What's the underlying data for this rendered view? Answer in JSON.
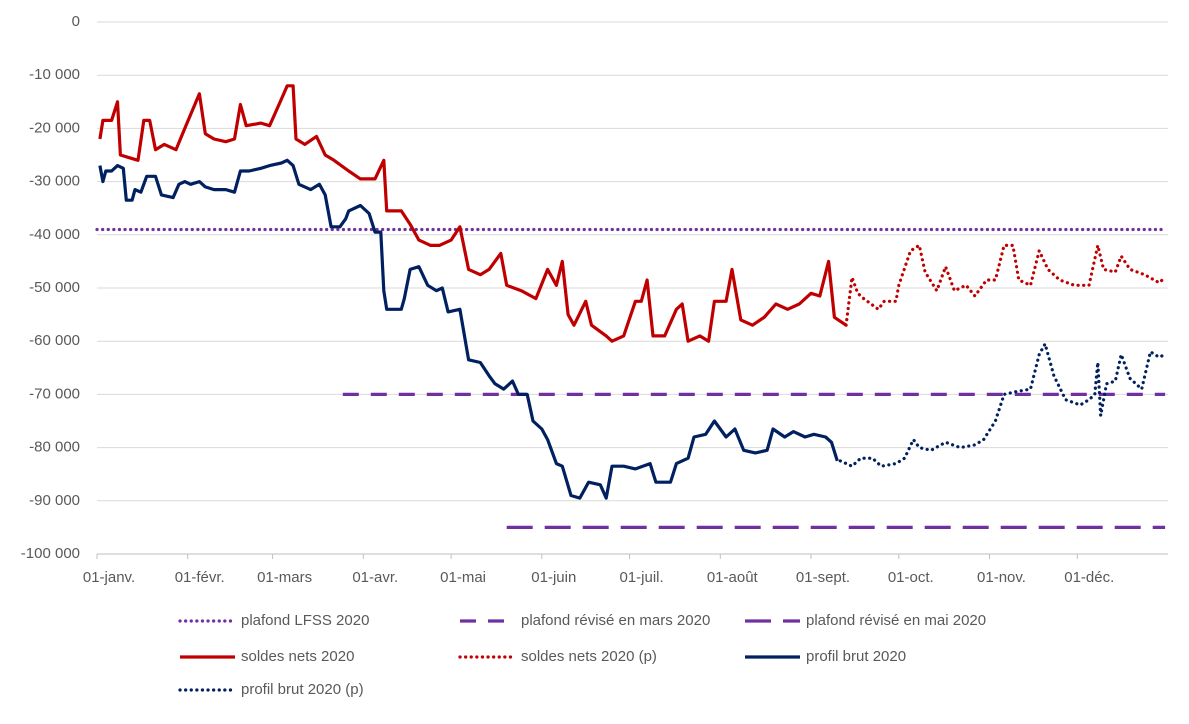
{
  "chart_data": {
    "type": "line",
    "xlim": [
      0,
      366
    ],
    "ylim": [
      -100000,
      0
    ],
    "xticks": [
      {
        "value": 0,
        "label": "01-janv."
      },
      {
        "value": 31,
        "label": "01-févr."
      },
      {
        "value": 60,
        "label": "01-mars"
      },
      {
        "value": 91,
        "label": "01-avr."
      },
      {
        "value": 121,
        "label": "01-mai"
      },
      {
        "value": 152,
        "label": "01-juin"
      },
      {
        "value": 182,
        "label": "01-juil."
      },
      {
        "value": 213,
        "label": "01-août"
      },
      {
        "value": 244,
        "label": "01-sept."
      },
      {
        "value": 274,
        "label": "01-oct."
      },
      {
        "value": 305,
        "label": "01-nov."
      },
      {
        "value": 335,
        "label": "01-déc."
      }
    ],
    "yticks": [
      0,
      {
        "value": -10000,
        "label": "-10 000"
      },
      {
        "value": -20000,
        "label": "-20 000"
      },
      {
        "value": -30000,
        "label": "-30 000"
      },
      {
        "value": -40000,
        "label": "-40 000"
      },
      {
        "value": -50000,
        "label": "-50 000"
      },
      {
        "value": -60000,
        "label": "-60 000"
      },
      {
        "value": -70000,
        "label": "-70 000"
      },
      {
        "value": -80000,
        "label": "-80 000"
      },
      {
        "value": -90000,
        "label": "-90 000"
      },
      {
        "value": -100000,
        "label": "-100 000"
      }
    ],
    "grid": true,
    "series": [
      {
        "name": "plafond LFSS 2020",
        "color": "#7030a0",
        "dash": "dot",
        "x": [
          0,
          365
        ],
        "values": [
          -39000,
          -39000
        ]
      },
      {
        "name": "plafond révisé en mars 2020",
        "color": "#7030a0",
        "dash": "dash",
        "x": [
          84,
          365
        ],
        "values": [
          -70000,
          -70000
        ]
      },
      {
        "name": "plafond révisé en mai 2020",
        "color": "#7030a0",
        "dash": "long-dash",
        "x": [
          140,
          365
        ],
        "values": [
          -95000,
          -95000
        ]
      },
      {
        "name": "soldes nets 2020",
        "color": "#c00000",
        "dash": "solid",
        "x": [
          1,
          2,
          5,
          7,
          8,
          11,
          14,
          16,
          18,
          20,
          23,
          27,
          30,
          35,
          37,
          40,
          44,
          47,
          49,
          51,
          56,
          59,
          63,
          65,
          67,
          68,
          71,
          75,
          78,
          81,
          86,
          90,
          95,
          98,
          99,
          104,
          107,
          110,
          114,
          117,
          121,
          124,
          127,
          131,
          134,
          138,
          140,
          145,
          150,
          154,
          157,
          159,
          161,
          163,
          167,
          169,
          174,
          176,
          180,
          184,
          186,
          188,
          190,
          194,
          198,
          200,
          202,
          206,
          209,
          211,
          215,
          217,
          220,
          224,
          228,
          232,
          236,
          240,
          244,
          247,
          250,
          252,
          256
        ],
        "values": [
          -22000,
          -18500,
          -18500,
          -15000,
          -25000,
          -25500,
          -26000,
          -18500,
          -18500,
          -24000,
          -23000,
          -24000,
          -20000,
          -13500,
          -21000,
          -22000,
          -22500,
          -22000,
          -15500,
          -19500,
          -19000,
          -19500,
          -14500,
          -12000,
          -12000,
          -22000,
          -23000,
          -21500,
          -25000,
          -26000,
          -28000,
          -29500,
          -29500,
          -26000,
          -35500,
          -35500,
          -38000,
          -41000,
          -42000,
          -42000,
          -41000,
          -38500,
          -46500,
          -47500,
          -46500,
          -43500,
          -49500,
          -50500,
          -52000,
          -46500,
          -49500,
          -45000,
          -55000,
          -57000,
          -52500,
          -57000,
          -59000,
          -60000,
          -59000,
          -52500,
          -52500,
          -48500,
          -59000,
          -59000,
          -54000,
          -53000,
          -60000,
          -59000,
          -60000,
          -52500,
          -52500,
          -46500,
          -56000,
          -57000,
          -55500,
          -53000,
          -54000,
          -53000,
          -51000,
          -51500,
          -45000,
          -55500,
          -57000
        ]
      },
      {
        "name": "soldes nets 2020 (p)",
        "color": "#c00000",
        "dash": "dot",
        "x": [
          256,
          258,
          260,
          262,
          267,
          269,
          273,
          274,
          278,
          281,
          283,
          287,
          290,
          293,
          297,
          300,
          304,
          307,
          310,
          313,
          315,
          319,
          322,
          325,
          329,
          334,
          339,
          342,
          344,
          348,
          350,
          353,
          358,
          363,
          365
        ],
        "values": [
          -57000,
          -48000,
          -51000,
          -52000,
          -54000,
          -52500,
          -52500,
          -49500,
          -43000,
          -42000,
          -47000,
          -50500,
          -46000,
          -50500,
          -49500,
          -51500,
          -48500,
          -48500,
          -42000,
          -42000,
          -48500,
          -49500,
          -43000,
          -46500,
          -48500,
          -49500,
          -49500,
          -42000,
          -46500,
          -47000,
          -44000,
          -46500,
          -47500,
          -49000,
          -48000
        ]
      },
      {
        "name": "profil brut 2020",
        "color": "#002060",
        "dash": "solid",
        "x": [
          1,
          2,
          3,
          5,
          7,
          9,
          10,
          12,
          13,
          15,
          17,
          20,
          22,
          26,
          28,
          30,
          32,
          35,
          37,
          40,
          44,
          47,
          49,
          52,
          56,
          59,
          63,
          65,
          67,
          69,
          73,
          76,
          78,
          80,
          83,
          85,
          86,
          90,
          93,
          95,
          97,
          98,
          99,
          104,
          105,
          107,
          110,
          113,
          116,
          118,
          120,
          124,
          127,
          131,
          134,
          136,
          139,
          142,
          144,
          147,
          149,
          152,
          154,
          157,
          159,
          162,
          165,
          168,
          172,
          174,
          176,
          180,
          184,
          189,
          191,
          196,
          198,
          202,
          204,
          208,
          211,
          215,
          218,
          221,
          225,
          229,
          231,
          235,
          238,
          242,
          245,
          249,
          251,
          253
        ],
        "values": [
          -27000,
          -30000,
          -28000,
          -28000,
          -27000,
          -27500,
          -33500,
          -33500,
          -31500,
          -32000,
          -29000,
          -29000,
          -32500,
          -33000,
          -30500,
          -30000,
          -30500,
          -30000,
          -31000,
          -31500,
          -31500,
          -32000,
          -28000,
          -28000,
          -27500,
          -27000,
          -26500,
          -26000,
          -27000,
          -30500,
          -31500,
          -30500,
          -32500,
          -38500,
          -38500,
          -37000,
          -35500,
          -34500,
          -36000,
          -39500,
          -39500,
          -50500,
          -54000,
          -54000,
          -52000,
          -46500,
          -46000,
          -49500,
          -50500,
          -50000,
          -54500,
          -54000,
          -63500,
          -64000,
          -66500,
          -68000,
          -69000,
          -67500,
          -70000,
          -70000,
          -75000,
          -76500,
          -78500,
          -83000,
          -83500,
          -89000,
          -89500,
          -86500,
          -87000,
          -89500,
          -83500,
          -83500,
          -84000,
          -83000,
          -86500,
          -86500,
          -83000,
          -82000,
          -78000,
          -77500,
          -75000,
          -78000,
          -76500,
          -80500,
          -81000,
          -80500,
          -76500,
          -78000,
          -77000,
          -78000,
          -77500,
          -78000,
          -79000,
          -82500
        ]
      },
      {
        "name": "profil brut 2020 (p)",
        "color": "#002060",
        "dash": "dot",
        "x": [
          254,
          258,
          261,
          265,
          268,
          273,
          276,
          279,
          281,
          285,
          290,
          295,
          300,
          303,
          307,
          310,
          314,
          319,
          322,
          324,
          327,
          331,
          336,
          339,
          341,
          342,
          343,
          345,
          348,
          350,
          353,
          357,
          360,
          363,
          365
        ],
        "values": [
          -82500,
          -83500,
          -82000,
          -82000,
          -83500,
          -83000,
          -82000,
          -78500,
          -80000,
          -80500,
          -79000,
          -80000,
          -79500,
          -78500,
          -75000,
          -70000,
          -69500,
          -69000,
          -62500,
          -60500,
          -66500,
          -71000,
          -72000,
          -71000,
          -70000,
          -64000,
          -74000,
          -68000,
          -67500,
          -62500,
          -67000,
          -69000,
          -62000,
          -63000,
          -62500
        ]
      }
    ]
  }
}
